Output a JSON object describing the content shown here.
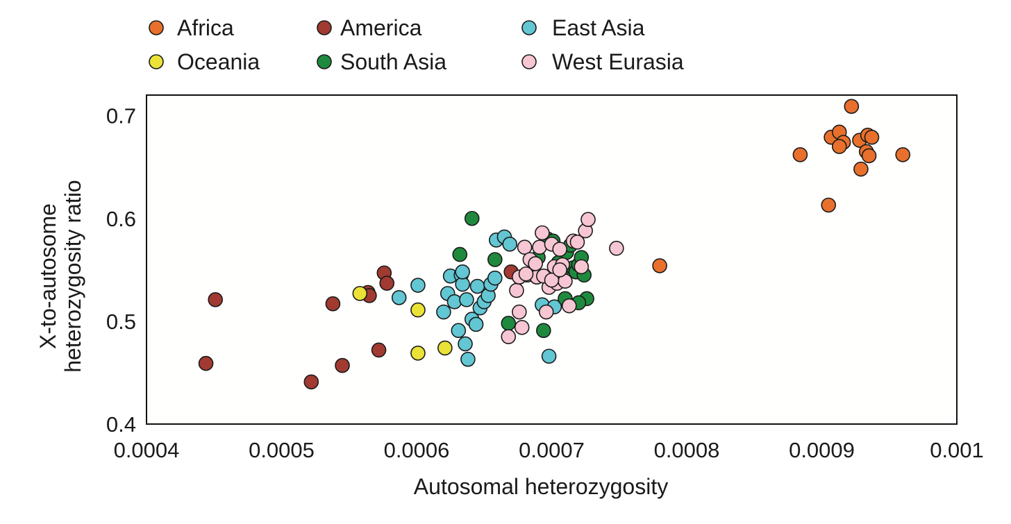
{
  "colors": {
    "Africa": "#e8702c",
    "America": "#a13a30",
    "East Asia": "#62c6d3",
    "Oceania": "#eae236",
    "South Asia": "#1f8a3d",
    "West Eurasia": "#f7c6d3"
  },
  "chart_data": {
    "type": "scatter",
    "title": "",
    "xlabel": "Autosomal heterozygosity",
    "ylabel_lines": [
      "X-to-autosome",
      "heterozygosity ratio"
    ],
    "xlim": [
      0.0004,
      0.001
    ],
    "ylim": [
      0.4,
      0.72
    ],
    "x_ticks": [
      {
        "value": 0.0004,
        "label": "0.0004"
      },
      {
        "value": 0.0005,
        "label": "0.0005"
      },
      {
        "value": 0.0006,
        "label": "0.0006"
      },
      {
        "value": 0.0007,
        "label": "0.0007"
      },
      {
        "value": 0.0008,
        "label": "0.0008"
      },
      {
        "value": 0.0009,
        "label": "0.0009"
      },
      {
        "value": 0.001,
        "label": "0.001"
      }
    ],
    "y_ticks": [
      {
        "value": 0.4,
        "label": "0.4"
      },
      {
        "value": 0.5,
        "label": "0.5"
      },
      {
        "value": 0.6,
        "label": "0.6"
      },
      {
        "value": 0.7,
        "label": "0.7"
      }
    ],
    "grid": false,
    "legend_position": "top, two rows of three",
    "series": [
      {
        "name": "Africa",
        "x": [
          0.000922,
          0.000907,
          0.000913,
          0.000916,
          0.000928,
          0.000934,
          0.000937,
          0.000913,
          0.000933,
          0.000935,
          0.000884,
          0.00096,
          0.000929,
          0.000905,
          0.00078
        ],
        "y": [
          0.709,
          0.679,
          0.684,
          0.674,
          0.676,
          0.681,
          0.679,
          0.67,
          0.665,
          0.661,
          0.662,
          0.662,
          0.648,
          0.613,
          0.554
        ]
      },
      {
        "name": "America",
        "x": [
          0.000451,
          0.000444,
          0.000538,
          0.000564,
          0.000565,
          0.000576,
          0.000578,
          0.000572,
          0.000545,
          0.000522,
          0.00067
        ],
        "y": [
          0.521,
          0.459,
          0.517,
          0.528,
          0.525,
          0.547,
          0.537,
          0.472,
          0.457,
          0.441,
          0.548
        ]
      },
      {
        "name": "East Asia",
        "x": [
          0.000587,
          0.000601,
          0.00062,
          0.000623,
          0.000625,
          0.000628,
          0.000631,
          0.000633,
          0.000634,
          0.000634,
          0.000636,
          0.000637,
          0.000638,
          0.000641,
          0.000644,
          0.000645,
          0.000647,
          0.00065,
          0.000653,
          0.000655,
          0.000658,
          0.000659,
          0.000665,
          0.000669,
          0.000693,
          0.000698,
          0.000702
        ],
        "y": [
          0.523,
          0.535,
          0.509,
          0.527,
          0.544,
          0.519,
          0.491,
          0.545,
          0.536,
          0.548,
          0.478,
          0.521,
          0.463,
          0.502,
          0.497,
          0.534,
          0.513,
          0.519,
          0.525,
          0.536,
          0.542,
          0.579,
          0.582,
          0.575,
          0.516,
          0.466,
          0.514
        ]
      },
      {
        "name": "Oceania",
        "x": [
          0.000558,
          0.000601,
          0.000601,
          0.000621
        ],
        "y": [
          0.527,
          0.511,
          0.469,
          0.474
        ]
      },
      {
        "name": "South Asia",
        "x": [
          0.000641,
          0.000632,
          0.000658,
          0.000668,
          0.00069,
          0.000697,
          0.000701,
          0.000705,
          0.000707,
          0.000711,
          0.000714,
          0.000716,
          0.000718,
          0.00072,
          0.000722,
          0.000724,
          0.000726,
          0.00071,
          0.00072,
          0.000694
        ],
        "y": [
          0.6,
          0.565,
          0.56,
          0.498,
          0.562,
          0.58,
          0.578,
          0.557,
          0.548,
          0.567,
          0.574,
          0.552,
          0.548,
          0.555,
          0.562,
          0.545,
          0.522,
          0.522,
          0.518,
          0.491
        ]
      },
      {
        "name": "West Eurasia",
        "x": [
          0.000668,
          0.000674,
          0.000676,
          0.000678,
          0.00068,
          0.000682,
          0.000684,
          0.000687,
          0.000689,
          0.000691,
          0.000693,
          0.000696,
          0.000698,
          0.0007,
          0.000702,
          0.000704,
          0.000706,
          0.000708,
          0.00071,
          0.000713,
          0.000716,
          0.000719,
          0.000722,
          0.000725,
          0.000727,
          0.000748,
          0.000676,
          0.000681,
          0.000688,
          0.000694,
          0.0007,
          0.000706
        ],
        "y": [
          0.485,
          0.53,
          0.509,
          0.494,
          0.572,
          0.545,
          0.56,
          0.548,
          0.543,
          0.572,
          0.586,
          0.509,
          0.533,
          0.575,
          0.553,
          0.537,
          0.57,
          0.555,
          0.539,
          0.515,
          0.578,
          0.577,
          0.553,
          0.588,
          0.599,
          0.571,
          0.543,
          0.546,
          0.556,
          0.544,
          0.54,
          0.55
        ]
      }
    ]
  }
}
